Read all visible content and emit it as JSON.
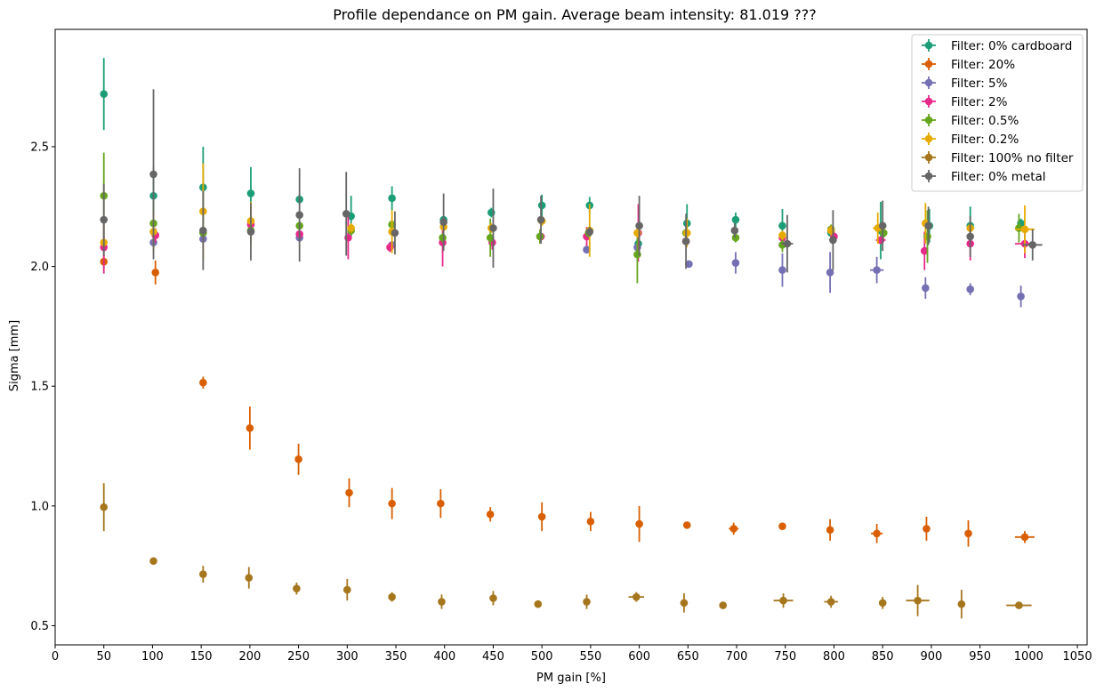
{
  "chart_data": {
    "type": "scatter",
    "title": "Profile dependance on PM gain. Average beam intensity: 81.019 ???",
    "xlabel": "PM gain [%]",
    "ylabel": "Sigma [mm]",
    "xlim": [
      0,
      1060
    ],
    "ylim": [
      0.42,
      2.99
    ],
    "xticks": [
      0,
      50,
      100,
      150,
      200,
      250,
      300,
      350,
      400,
      450,
      500,
      550,
      600,
      650,
      700,
      750,
      800,
      850,
      900,
      950,
      1000,
      1050
    ],
    "xtick_labels": [
      "0",
      "50",
      "100",
      "150",
      "200",
      "250",
      "300",
      "350",
      "400",
      "450",
      "500",
      "550",
      "600",
      "650",
      "700",
      "750",
      "800",
      "850",
      "900",
      "950",
      "1000",
      "1050"
    ],
    "yticks": [
      0.5,
      1.0,
      1.5,
      2.0,
      2.5
    ],
    "ytick_labels": [
      "0.5",
      "1.0",
      "1.5",
      "2.0",
      "2.5"
    ],
    "grid": false,
    "legend_position": "top-right",
    "series": [
      {
        "name": "Filter: 0% cardboard",
        "color": "#1b9e77",
        "points": [
          {
            "x": 50,
            "y": 2.72,
            "yerr": 0.15
          },
          {
            "x": 101,
            "y": 2.295,
            "yerr": 0.12
          },
          {
            "x": 152,
            "y": 2.33,
            "yerr": 0.17
          },
          {
            "x": 201,
            "y": 2.305,
            "yerr": 0.11
          },
          {
            "x": 251,
            "y": 2.28,
            "yerr": 0.02
          },
          {
            "x": 304,
            "y": 2.21,
            "yerr": 0.085
          },
          {
            "x": 346,
            "y": 2.285,
            "yerr": 0.05
          },
          {
            "x": 399,
            "y": 2.195,
            "yerr": 0.01
          },
          {
            "x": 448,
            "y": 2.225,
            "yerr": 0.02
          },
          {
            "x": 500,
            "y": 2.255,
            "yerr": 0.045
          },
          {
            "x": 549,
            "y": 2.255,
            "yerr": 0.035
          },
          {
            "x": 599,
            "y": 2.095,
            "yerr": 0.02
          },
          {
            "x": 649,
            "y": 2.18,
            "yerr": 0.08
          },
          {
            "x": 699,
            "y": 2.195,
            "yerr": 0.03
          },
          {
            "x": 747,
            "y": 2.17,
            "yerr": 0.07
          },
          {
            "x": 797,
            "y": 2.14,
            "yerr": 0.03
          },
          {
            "x": 848,
            "y": 2.15,
            "yerr": 0.12
          },
          {
            "x": 898,
            "y": 2.17,
            "yerr": 0.07
          },
          {
            "x": 940,
            "y": 2.17,
            "yerr": 0.08
          },
          {
            "x": 992,
            "y": 2.18,
            "yerr": 0.02
          }
        ]
      },
      {
        "name": "Filter: 20%",
        "color": "#d95f02",
        "points": [
          {
            "x": 50,
            "y": 2.02,
            "yerr": 0.03
          },
          {
            "x": 103,
            "y": 1.975,
            "yerr": 0.05
          },
          {
            "x": 152,
            "y": 1.515,
            "yerr": 0.025
          },
          {
            "x": 200,
            "y": 1.325,
            "yerr": 0.09
          },
          {
            "x": 250,
            "y": 1.195,
            "yerr": 0.065
          },
          {
            "x": 302,
            "y": 1.055,
            "yerr": 0.06
          },
          {
            "x": 346,
            "y": 1.01,
            "yerr": 0.065
          },
          {
            "x": 396,
            "y": 1.01,
            "yerr": 0.06
          },
          {
            "x": 447,
            "y": 0.965,
            "yerr": 0.03
          },
          {
            "x": 500,
            "y": 0.955,
            "yerr": 0.06
          },
          {
            "x": 550,
            "y": 0.935,
            "yerr": 0.04
          },
          {
            "x": 600,
            "y": 0.925,
            "yerr": 0.075
          },
          {
            "x": 649,
            "y": 0.92,
            "yerr": 0.01
          },
          {
            "x": 697,
            "y": 0.905,
            "yerr": 0.025,
            "xerr": 5
          },
          {
            "x": 747,
            "y": 0.915,
            "yerr": 0.01
          },
          {
            "x": 796,
            "y": 0.9,
            "yerr": 0.045
          },
          {
            "x": 844,
            "y": 0.885,
            "yerr": 0.04,
            "xerr": 6
          },
          {
            "x": 895,
            "y": 0.905,
            "yerr": 0.05
          },
          {
            "x": 938,
            "y": 0.885,
            "yerr": 0.055
          },
          {
            "x": 996,
            "y": 0.87,
            "yerr": 0.025,
            "xerr": 10
          }
        ]
      },
      {
        "name": "Filter: 5%",
        "color": "#7570b3",
        "points": [
          {
            "x": 101,
            "y": 2.1,
            "yerr": 0.015
          },
          {
            "x": 152,
            "y": 2.115,
            "yerr": 0.015
          },
          {
            "x": 251,
            "y": 2.12,
            "yerr": 0.015
          },
          {
            "x": 346,
            "y": 2.09,
            "yerr": 0.015
          },
          {
            "x": 546,
            "y": 2.07,
            "yerr": 0.015
          },
          {
            "x": 598,
            "y": 2.08,
            "yerr": 0.015
          },
          {
            "x": 651,
            "y": 2.01,
            "yerr": 0.015
          },
          {
            "x": 699,
            "y": 2.015,
            "yerr": 0.045
          },
          {
            "x": 747,
            "y": 1.985,
            "yerr": 0.07
          },
          {
            "x": 796,
            "y": 1.975,
            "yerr": 0.085
          },
          {
            "x": 844,
            "y": 1.985,
            "yerr": 0.055,
            "xerr": 7
          },
          {
            "x": 894,
            "y": 1.91,
            "yerr": 0.045
          },
          {
            "x": 940,
            "y": 1.905,
            "yerr": 0.025
          },
          {
            "x": 992,
            "y": 1.875,
            "yerr": 0.045
          }
        ]
      },
      {
        "name": "Filter: 2%",
        "color": "#e7298a",
        "points": [
          {
            "x": 50,
            "y": 2.08,
            "yerr": 0.11
          },
          {
            "x": 103,
            "y": 2.13,
            "yerr": 0.03
          },
          {
            "x": 201,
            "y": 2.175,
            "yerr": 0.06
          },
          {
            "x": 251,
            "y": 2.135,
            "yerr": 0.01
          },
          {
            "x": 301,
            "y": 2.12,
            "yerr": 0.09
          },
          {
            "x": 344,
            "y": 2.08,
            "yerr": 0.02
          },
          {
            "x": 398,
            "y": 2.1,
            "yerr": 0.1
          },
          {
            "x": 449,
            "y": 2.1,
            "yerr": 0.03
          },
          {
            "x": 499,
            "y": 2.125,
            "yerr": 0.02
          },
          {
            "x": 546,
            "y": 2.125,
            "yerr": 0.04
          },
          {
            "x": 599,
            "y": 2.14,
            "yerr": 0.12
          },
          {
            "x": 648,
            "y": 2.105,
            "yerr": 0.01
          },
          {
            "x": 747,
            "y": 2.12,
            "yerr": 0.01
          },
          {
            "x": 800,
            "y": 2.125,
            "yerr": 0.03
          },
          {
            "x": 848,
            "y": 2.11,
            "yerr": 0.015,
            "xerr": 5
          },
          {
            "x": 893,
            "y": 2.065,
            "yerr": 0.08
          },
          {
            "x": 940,
            "y": 2.095,
            "yerr": 0.07
          },
          {
            "x": 996,
            "y": 2.095,
            "yerr": 0.06,
            "xerr": 10
          }
        ]
      },
      {
        "name": "Filter: 0.5%",
        "color": "#66a61e",
        "points": [
          {
            "x": 50,
            "y": 2.295,
            "yerr": 0.18
          },
          {
            "x": 101,
            "y": 2.18,
            "yerr": 0.09
          },
          {
            "x": 152,
            "y": 2.14,
            "yerr": 0.02
          },
          {
            "x": 201,
            "y": 2.15,
            "yerr": 0.06
          },
          {
            "x": 251,
            "y": 2.17,
            "yerr": 0.02
          },
          {
            "x": 304,
            "y": 2.15,
            "yerr": 0.02
          },
          {
            "x": 346,
            "y": 2.175,
            "yerr": 0.02
          },
          {
            "x": 398,
            "y": 2.12,
            "yerr": 0.02
          },
          {
            "x": 447,
            "y": 2.12,
            "yerr": 0.08
          },
          {
            "x": 498,
            "y": 2.125,
            "yerr": 0.03
          },
          {
            "x": 548,
            "y": 2.14,
            "yerr": 0.02
          },
          {
            "x": 598,
            "y": 2.05,
            "yerr": 0.12
          },
          {
            "x": 648,
            "y": 2.14,
            "yerr": 0.02
          },
          {
            "x": 699,
            "y": 2.12,
            "yerr": 0.02
          },
          {
            "x": 747,
            "y": 2.09,
            "yerr": 0.03
          },
          {
            "x": 797,
            "y": 2.155,
            "yerr": 0.02
          },
          {
            "x": 851,
            "y": 2.14,
            "yerr": 0.02
          },
          {
            "x": 896,
            "y": 2.125,
            "yerr": 0.11
          },
          {
            "x": 990,
            "y": 2.16,
            "yerr": 0.06
          }
        ]
      },
      {
        "name": "Filter: 0.2%",
        "color": "#e6ab02",
        "points": [
          {
            "x": 50,
            "y": 2.1,
            "yerr": 0.02
          },
          {
            "x": 101,
            "y": 2.145,
            "yerr": 0.08
          },
          {
            "x": 152,
            "y": 2.23,
            "yerr": 0.2
          },
          {
            "x": 201,
            "y": 2.19,
            "yerr": 0.08
          },
          {
            "x": 304,
            "y": 2.16,
            "yerr": 0.02
          },
          {
            "x": 346,
            "y": 2.145,
            "yerr": 0.09
          },
          {
            "x": 399,
            "y": 2.165,
            "yerr": 0.02
          },
          {
            "x": 448,
            "y": 2.16,
            "yerr": 0.02
          },
          {
            "x": 500,
            "y": 2.19,
            "yerr": 0.02
          },
          {
            "x": 549,
            "y": 2.15,
            "yerr": 0.11
          },
          {
            "x": 598,
            "y": 2.14,
            "yerr": 0.02
          },
          {
            "x": 649,
            "y": 2.14,
            "yerr": 0.06
          },
          {
            "x": 747,
            "y": 2.13,
            "yerr": 0.02
          },
          {
            "x": 797,
            "y": 2.15,
            "yerr": 0.02
          },
          {
            "x": 845,
            "y": 2.16,
            "yerr": 0.065,
            "xerr": 5
          },
          {
            "x": 894,
            "y": 2.18,
            "yerr": 0.085
          },
          {
            "x": 940,
            "y": 2.16,
            "yerr": 0.02
          },
          {
            "x": 996,
            "y": 2.155,
            "yerr": 0.1,
            "xerr": 10
          }
        ]
      },
      {
        "name": "Filter: 100% no filter",
        "color": "#a6761d",
        "points": [
          {
            "x": 50,
            "y": 0.995,
            "yerr": 0.1
          },
          {
            "x": 101,
            "y": 0.77,
            "yerr": 0.015
          },
          {
            "x": 152,
            "y": 0.715,
            "yerr": 0.035
          },
          {
            "x": 199,
            "y": 0.7,
            "yerr": 0.045
          },
          {
            "x": 248,
            "y": 0.655,
            "yerr": 0.025
          },
          {
            "x": 300,
            "y": 0.65,
            "yerr": 0.045
          },
          {
            "x": 346,
            "y": 0.62,
            "yerr": 0.02
          },
          {
            "x": 397,
            "y": 0.6,
            "yerr": 0.03
          },
          {
            "x": 450,
            "y": 0.615,
            "yerr": 0.03
          },
          {
            "x": 496,
            "y": 0.59,
            "yerr": 0.01
          },
          {
            "x": 546,
            "y": 0.6,
            "yerr": 0.03
          },
          {
            "x": 597,
            "y": 0.62,
            "yerr": 0.02,
            "xerr": 8
          },
          {
            "x": 646,
            "y": 0.595,
            "yerr": 0.04
          },
          {
            "x": 686,
            "y": 0.585,
            "yerr": 0.01
          },
          {
            "x": 748,
            "y": 0.605,
            "yerr": 0.03,
            "xerr": 10
          },
          {
            "x": 797,
            "y": 0.6,
            "yerr": 0.025,
            "xerr": 7
          },
          {
            "x": 850,
            "y": 0.595,
            "yerr": 0.025
          },
          {
            "x": 886,
            "y": 0.605,
            "yerr": 0.065,
            "xerr": 12
          },
          {
            "x": 931,
            "y": 0.59,
            "yerr": 0.06
          },
          {
            "x": 990,
            "y": 0.585,
            "yerr": 0.01,
            "xerr": 13
          }
        ]
      },
      {
        "name": "Filter: 0% metal",
        "color": "#666666",
        "points": [
          {
            "x": 50,
            "y": 2.195,
            "yerr": 0.15
          },
          {
            "x": 101,
            "y": 2.385,
            "yerr": 0.355
          },
          {
            "x": 152,
            "y": 2.15,
            "yerr": 0.165
          },
          {
            "x": 201,
            "y": 2.145,
            "yerr": 0.12
          },
          {
            "x": 251,
            "y": 2.215,
            "yerr": 0.195
          },
          {
            "x": 299,
            "y": 2.22,
            "yerr": 0.175
          },
          {
            "x": 349,
            "y": 2.14,
            "yerr": 0.09
          },
          {
            "x": 399,
            "y": 2.185,
            "yerr": 0.12
          },
          {
            "x": 450,
            "y": 2.16,
            "yerr": 0.165
          },
          {
            "x": 499,
            "y": 2.195,
            "yerr": 0.1
          },
          {
            "x": 549,
            "y": 2.145,
            "yerr": 0.02
          },
          {
            "x": 600,
            "y": 2.17,
            "yerr": 0.125
          },
          {
            "x": 648,
            "y": 2.105,
            "yerr": 0.115
          },
          {
            "x": 698,
            "y": 2.15,
            "yerr": 0.03
          },
          {
            "x": 752,
            "y": 2.095,
            "yerr": 0.12,
            "xerr": 6
          },
          {
            "x": 799,
            "y": 2.11,
            "yerr": 0.125
          },
          {
            "x": 850,
            "y": 2.17,
            "yerr": 0.105
          },
          {
            "x": 897,
            "y": 2.17,
            "yerr": 0.08
          },
          {
            "x": 940,
            "y": 2.125,
            "yerr": 0.085
          },
          {
            "x": 1004,
            "y": 2.09,
            "yerr": 0.065,
            "xerr": 10
          }
        ]
      }
    ]
  }
}
